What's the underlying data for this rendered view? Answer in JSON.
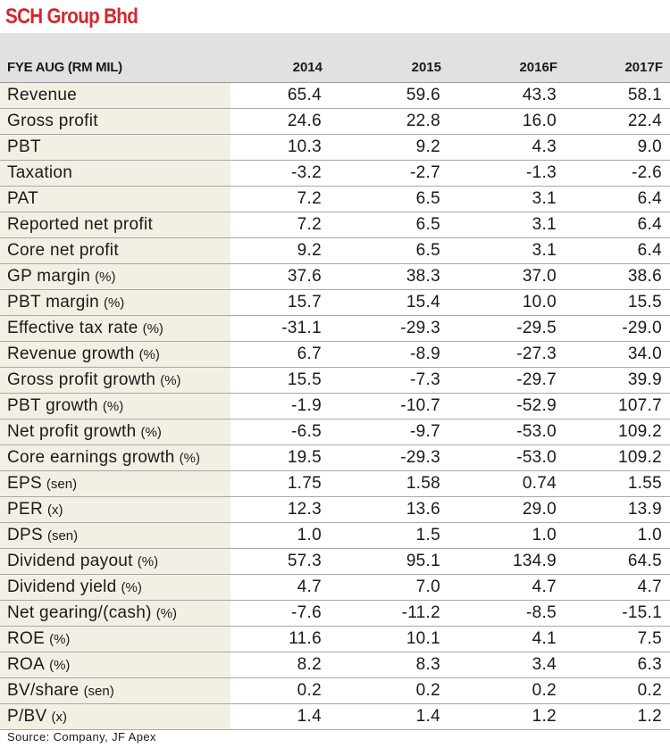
{
  "title": "SCH Group Bhd",
  "header": {
    "label": "FYE AUG (RM MIL)",
    "years": [
      "2014",
      "2015",
      "2016F",
      "2017F"
    ]
  },
  "rows": [
    {
      "label": "Revenue",
      "unit": "",
      "values": [
        "65.4",
        "59.6",
        "43.3",
        "58.1"
      ]
    },
    {
      "label": "Gross profit",
      "unit": "",
      "values": [
        "24.6",
        "22.8",
        "16.0",
        "22.4"
      ]
    },
    {
      "label": "PBT",
      "unit": "",
      "values": [
        "10.3",
        "9.2",
        "4.3",
        "9.0"
      ]
    },
    {
      "label": "Taxation",
      "unit": "",
      "values": [
        "-3.2",
        "-2.7",
        "-1.3",
        "-2.6"
      ]
    },
    {
      "label": "PAT",
      "unit": "",
      "values": [
        "7.2",
        "6.5",
        "3.1",
        "6.4"
      ]
    },
    {
      "label": "Reported net profit",
      "unit": "",
      "values": [
        "7.2",
        "6.5",
        "3.1",
        "6.4"
      ]
    },
    {
      "label": "Core net profit",
      "unit": "",
      "values": [
        "9.2",
        "6.5",
        "3.1",
        "6.4"
      ]
    },
    {
      "label": "GP margin",
      "unit": "(%)",
      "values": [
        "37.6",
        "38.3",
        "37.0",
        "38.6"
      ]
    },
    {
      "label": "PBT margin",
      "unit": "(%)",
      "values": [
        "15.7",
        "15.4",
        "10.0",
        "15.5"
      ]
    },
    {
      "label": "Effective tax rate",
      "unit": "(%)",
      "values": [
        "-31.1",
        "-29.3",
        "-29.5",
        "-29.0"
      ]
    },
    {
      "label": "Revenue growth",
      "unit": "(%)",
      "values": [
        "6.7",
        "-8.9",
        "-27.3",
        "34.0"
      ]
    },
    {
      "label": "Gross profit growth",
      "unit": "(%)",
      "values": [
        "15.5",
        "-7.3",
        "-29.7",
        "39.9"
      ]
    },
    {
      "label": "PBT growth",
      "unit": "(%)",
      "values": [
        "-1.9",
        "-10.7",
        "-52.9",
        "107.7"
      ]
    },
    {
      "label": "Net profit growth",
      "unit": "(%)",
      "values": [
        "-6.5",
        "-9.7",
        "-53.0",
        "109.2"
      ]
    },
    {
      "label": "Core earnings growth",
      "unit": "(%)",
      "values": [
        "19.5",
        "-29.3",
        "-53.0",
        "109.2"
      ]
    },
    {
      "label": "EPS",
      "unit": "(sen)",
      "values": [
        "1.75",
        "1.58",
        "0.74",
        "1.55"
      ]
    },
    {
      "label": "PER",
      "unit": "(x)",
      "values": [
        "12.3",
        "13.6",
        "29.0",
        "13.9"
      ]
    },
    {
      "label": "DPS",
      "unit": "(sen)",
      "values": [
        "1.0",
        "1.5",
        "1.0",
        "1.0"
      ]
    },
    {
      "label": "Dividend payout",
      "unit": "(%)",
      "values": [
        "57.3",
        "95.1",
        "134.9",
        "64.5"
      ]
    },
    {
      "label": "Dividend yield",
      "unit": "(%)",
      "values": [
        "4.7",
        "7.0",
        "4.7",
        "4.7"
      ]
    },
    {
      "label": "Net gearing/(cash)",
      "unit": "(%)",
      "values": [
        "-7.6",
        "-11.2",
        "-8.5",
        "-15.1"
      ]
    },
    {
      "label": "ROE",
      "unit": "(%)",
      "values": [
        "11.6",
        "10.1",
        "4.1",
        "7.5"
      ]
    },
    {
      "label": "ROA",
      "unit": "(%)",
      "values": [
        "8.2",
        "8.3",
        "3.4",
        "6.3"
      ]
    },
    {
      "label": "BV/share",
      "unit": "(sen)",
      "values": [
        "0.2",
        "0.2",
        "0.2",
        "0.2"
      ]
    },
    {
      "label": "P/BV",
      "unit": "(x)",
      "values": [
        "1.4",
        "1.4",
        "1.2",
        "1.2"
      ]
    }
  ],
  "source": "Source: Company, JF Apex",
  "colors": {
    "title": "#d3282e",
    "header_bg": "#e1e1e1",
    "label_bg": "#f2f0e4",
    "rule": "#a8a8a8"
  }
}
